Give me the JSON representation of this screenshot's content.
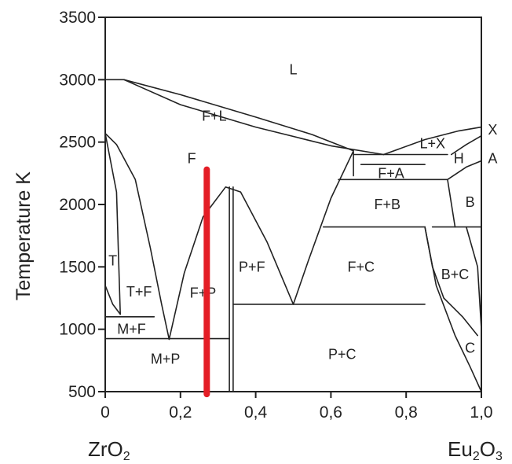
{
  "chart_data": {
    "type": "line",
    "title": "",
    "ylabel": "Temperature K",
    "xlabel": "",
    "xlim": [
      0,
      1
    ],
    "ylim": [
      500,
      3500
    ],
    "xticks": [
      0,
      0.2,
      0.4,
      0.6,
      0.8,
      1.0
    ],
    "xtick_labels": [
      "0",
      "0,2",
      "0,4",
      "0,6",
      "0,8",
      "1,0"
    ],
    "yticks": [
      500,
      1000,
      1500,
      2000,
      2500,
      3000,
      3500
    ],
    "ytick_labels": [
      "500",
      "1000",
      "1500",
      "2000",
      "2500",
      "3000",
      "3500"
    ],
    "endpoint_labels": {
      "left": {
        "base": "ZrO",
        "sub": "2"
      },
      "right": {
        "base": "Eu",
        "sub1": "2",
        "mid": "O",
        "sub2": "3"
      }
    },
    "highlight_line": {
      "x": 0.27,
      "y_range": [
        2280,
        480
      ],
      "color": "#e41e26"
    },
    "series": [
      {
        "points": [
          [
            0,
            3000
          ],
          [
            0.05,
            3000
          ],
          [
            0.2,
            2800
          ],
          [
            0.4,
            2620
          ],
          [
            0.6,
            2470
          ],
          [
            0.74,
            2400
          ]
        ]
      },
      {
        "points": [
          [
            0.05,
            3000
          ],
          [
            0.2,
            2880
          ],
          [
            0.4,
            2700
          ],
          [
            0.55,
            2560
          ],
          [
            0.66,
            2430
          ]
        ]
      },
      {
        "points": [
          [
            0.74,
            2400
          ],
          [
            0.85,
            2520
          ],
          [
            0.94,
            2590
          ],
          [
            1.0,
            2620
          ]
        ]
      },
      {
        "points": [
          [
            0,
            2570
          ],
          [
            0.03,
            2480
          ],
          [
            0.08,
            2200
          ],
          [
            0.12,
            1650
          ],
          [
            0.15,
            1200
          ],
          [
            0.17,
            920
          ]
        ]
      },
      {
        "points": [
          [
            0.17,
            920
          ],
          [
            0.21,
            1450
          ],
          [
            0.26,
            1900
          ],
          [
            0.32,
            2140
          ],
          [
            0.36,
            2100
          ],
          [
            0.43,
            1700
          ],
          [
            0.5,
            1200
          ]
        ]
      },
      {
        "points": [
          [
            0,
            2570
          ],
          [
            0.03,
            2100
          ],
          [
            0.04,
            1120
          ]
        ]
      },
      {
        "points": [
          [
            0,
            1350
          ],
          [
            0.02,
            1200
          ],
          [
            0.04,
            1120
          ]
        ]
      },
      {
        "points": [
          [
            0,
            1100
          ],
          [
            0.13,
            1100
          ]
        ]
      },
      {
        "points": [
          [
            0,
            925
          ],
          [
            0.33,
            925
          ]
        ]
      },
      {
        "points": [
          [
            0.33,
            2140
          ],
          [
            0.33,
            500
          ]
        ]
      },
      {
        "points": [
          [
            0.34,
            2140
          ],
          [
            0.34,
            500
          ]
        ]
      },
      {
        "points": [
          [
            0.5,
            1200
          ],
          [
            0.54,
            1550
          ],
          [
            0.6,
            2050
          ],
          [
            0.66,
            2430
          ]
        ]
      },
      {
        "points": [
          [
            0.34,
            1200
          ],
          [
            0.85,
            1200
          ]
        ]
      },
      {
        "points": [
          [
            0.58,
            1820
          ],
          [
            0.85,
            1820
          ]
        ]
      },
      {
        "points": [
          [
            0.87,
            1820
          ],
          [
            1.0,
            1820
          ]
        ]
      },
      {
        "points": [
          [
            0.62,
            2200
          ],
          [
            0.91,
            2200
          ]
        ]
      },
      {
        "points": [
          [
            0.66,
            2230
          ],
          [
            0.66,
            2420
          ]
        ]
      },
      {
        "points": [
          [
            0.68,
            2320
          ],
          [
            0.85,
            2320
          ]
        ]
      },
      {
        "points": [
          [
            0.66,
            2400
          ],
          [
            0.91,
            2400
          ]
        ]
      },
      {
        "points": [
          [
            0.91,
            2200
          ],
          [
            0.93,
            1820
          ]
        ]
      },
      {
        "points": [
          [
            0.85,
            1820
          ],
          [
            0.87,
            1500
          ],
          [
            0.9,
            1250
          ],
          [
            0.95,
            1100
          ],
          [
            0.99,
            950
          ]
        ]
      },
      {
        "points": [
          [
            0.85,
            1820
          ],
          [
            0.88,
            1350
          ],
          [
            0.93,
            950
          ],
          [
            0.97,
            700
          ],
          [
            1.0,
            500
          ]
        ]
      },
      {
        "points": [
          [
            0.91,
            2200
          ],
          [
            0.96,
            2300
          ],
          [
            1.0,
            2350
          ]
        ]
      },
      {
        "points": [
          [
            0.92,
            2400
          ],
          [
            0.96,
            2480
          ],
          [
            1.0,
            2550
          ]
        ]
      },
      {
        "points": [
          [
            0.96,
            1820
          ],
          [
            0.99,
            1500
          ],
          [
            1.0,
            1000
          ]
        ]
      }
    ],
    "region_labels": [
      {
        "text": "L",
        "x": 0.5,
        "y": 3080
      },
      {
        "text": "F+L",
        "x": 0.29,
        "y": 2710
      },
      {
        "text": "F",
        "x": 0.23,
        "y": 2370
      },
      {
        "text": "T",
        "x": 0.02,
        "y": 1550
      },
      {
        "text": "T+F",
        "x": 0.09,
        "y": 1300
      },
      {
        "text": "F+P",
        "x": 0.26,
        "y": 1290
      },
      {
        "text": "M+F",
        "x": 0.07,
        "y": 1000
      },
      {
        "text": "M+P",
        "x": 0.16,
        "y": 760
      },
      {
        "text": "P+F",
        "x": 0.39,
        "y": 1500
      },
      {
        "text": "F+C",
        "x": 0.68,
        "y": 1500
      },
      {
        "text": "P+C",
        "x": 0.63,
        "y": 800
      },
      {
        "text": "F+B",
        "x": 0.75,
        "y": 2000
      },
      {
        "text": "F+A",
        "x": 0.76,
        "y": 2250
      },
      {
        "text": "L+X",
        "x": 0.87,
        "y": 2490
      },
      {
        "text": "H",
        "x": 0.94,
        "y": 2370
      },
      {
        "text": "B",
        "x": 0.97,
        "y": 2020
      },
      {
        "text": "B+C",
        "x": 0.93,
        "y": 1440
      },
      {
        "text": "C",
        "x": 0.97,
        "y": 850
      },
      {
        "text": "X",
        "x": 1.03,
        "y": 2600
      },
      {
        "text": "A",
        "x": 1.03,
        "y": 2370
      }
    ],
    "grid": false
  }
}
